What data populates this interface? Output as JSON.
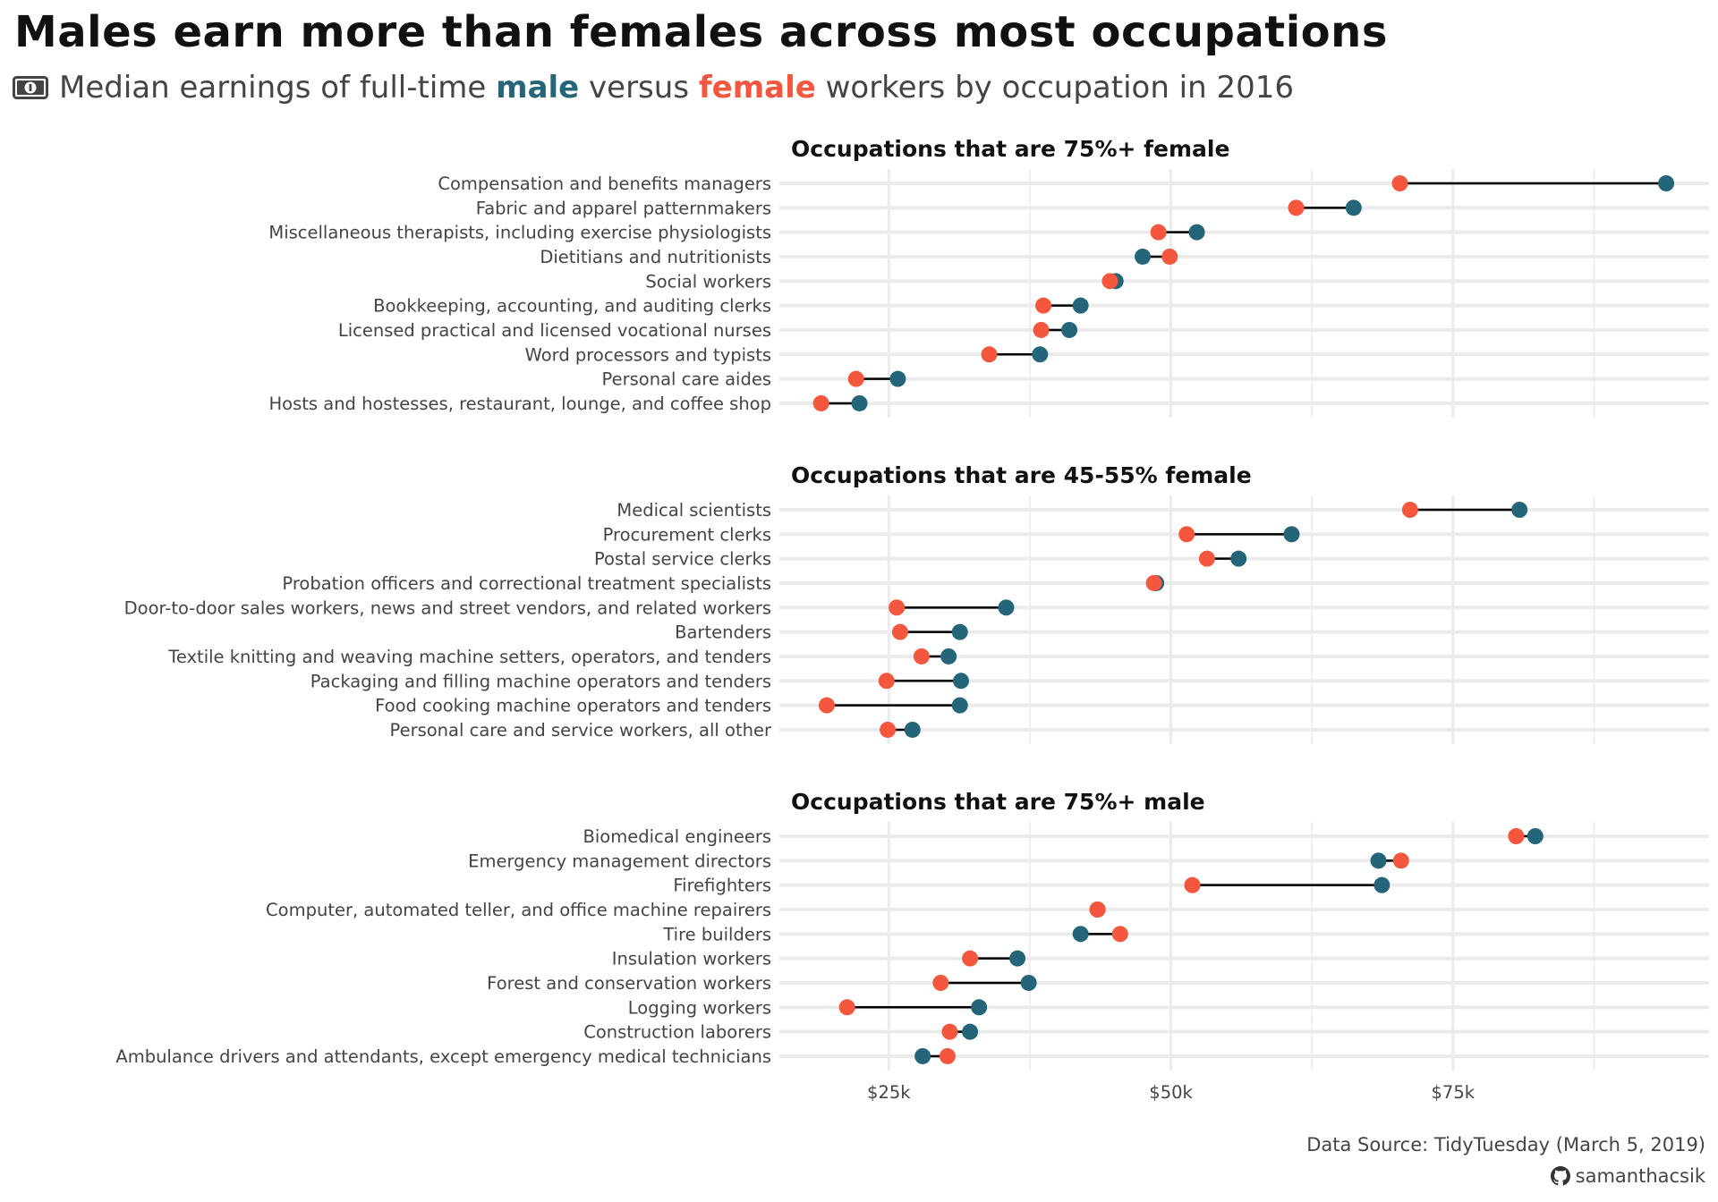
{
  "title": "Males earn more than females across most occupations",
  "subtitle": {
    "icon": "money-bill-icon",
    "prefix": "Median earnings of full-time ",
    "male_word": "male",
    "middle": " versus ",
    "female_word": "female",
    "suffix": " workers by occupation in 2016"
  },
  "colors": {
    "male": "#24657A",
    "female": "#F4573D",
    "segment": "#000000",
    "grid": "#EBEBEB"
  },
  "footer": {
    "source": "Data Source: TidyTuesday (March 5, 2019)",
    "author_icon": "github-icon",
    "author": "samanthacsik"
  },
  "chart_data": {
    "type": "dumbbell",
    "title": "Males earn more than females across most occupations",
    "subtitle": "Median earnings of full-time male versus female workers by occupation in 2016",
    "xlabel": "",
    "ylabel": "",
    "units": "thousands USD",
    "xlim": [
      15.3,
      97.7
    ],
    "xticks": [
      25,
      50,
      75
    ],
    "xtick_labels": [
      "$25k",
      "$50k",
      "$75k"
    ],
    "grid": true,
    "legend": "none (colors explained in subtitle)",
    "series_names": [
      "male",
      "female"
    ],
    "panels": [
      {
        "title": "Occupations that are 75%+ female",
        "categories": [
          "Compensation and benefits managers",
          "Fabric and apparel patternmakers",
          "Miscellaneous therapists, including exercise physiologists",
          "Dietitians and nutritionists",
          "Social workers",
          "Bookkeeping, accounting, and auditing clerks",
          "Licensed practical and licensed vocational nurses",
          "Word processors and typists",
          "Personal care aides",
          "Hosts and hostesses, restaurant, lounge, and coffee shop"
        ],
        "male": [
          93.9,
          66.2,
          52.3,
          47.5,
          45.1,
          42.0,
          41.0,
          38.4,
          25.8,
          22.4
        ],
        "female": [
          70.3,
          61.1,
          48.9,
          49.9,
          44.6,
          38.7,
          38.5,
          33.9,
          22.1,
          19.0
        ]
      },
      {
        "title": "Occupations that are 45-55% female",
        "categories": [
          "Medical scientists",
          "Procurement clerks",
          "Postal service clerks",
          "Probation officers and correctional treatment specialists",
          "Door-to-door sales workers, news and street vendors, and related workers",
          "Bartenders",
          "Textile knitting and weaving machine setters, operators, and tenders",
          "Packaging and filling machine operators and tenders",
          "Food cooking machine operators and tenders",
          "Personal care and service workers, all other"
        ],
        "male": [
          80.9,
          60.7,
          56.0,
          48.7,
          35.4,
          31.3,
          30.3,
          31.4,
          31.3,
          27.1
        ],
        "female": [
          71.2,
          51.4,
          53.2,
          48.5,
          25.7,
          26.0,
          27.9,
          24.8,
          19.5,
          24.9
        ]
      },
      {
        "title": "Occupations that are 75%+ male",
        "categories": [
          "Biomedical engineers",
          "Emergency management directors",
          "Firefighters",
          "Computer, automated teller, and office machine repairers",
          "Tire builders",
          "Insulation workers",
          "Forest and conservation workers",
          "Logging workers",
          "Construction laborers",
          "Ambulance drivers and attendants, except emergency medical technicians"
        ],
        "male": [
          82.3,
          68.4,
          68.7,
          43.5,
          42.0,
          36.4,
          37.4,
          33.0,
          32.2,
          28.0
        ],
        "female": [
          80.6,
          70.4,
          51.9,
          43.5,
          45.5,
          32.2,
          29.6,
          21.3,
          30.4,
          30.2
        ]
      }
    ]
  }
}
